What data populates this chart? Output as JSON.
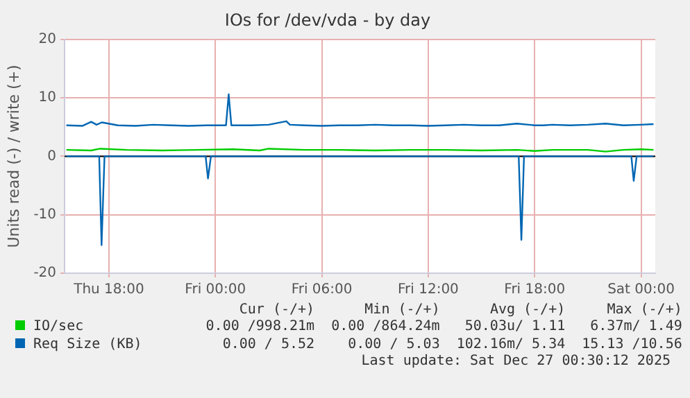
{
  "chart_data": {
    "type": "line",
    "title": "IOs for /dev/vda - by day",
    "ylabel": "Units read (-) / write (+)",
    "xlim": [
      "2025-12-25T15:30",
      "2025-12-27T00:48"
    ],
    "xticks": [
      {
        "value": "2025-12-25T18:00",
        "label": "Thu 18:00"
      },
      {
        "value": "2025-12-26T00:00",
        "label": "Fri 00:00"
      },
      {
        "value": "2025-12-26T06:00",
        "label": "Fri 06:00"
      },
      {
        "value": "2025-12-26T12:00",
        "label": "Fri 12:00"
      },
      {
        "value": "2025-12-26T18:00",
        "label": "Fri 18:00"
      },
      {
        "value": "2025-12-27T00:00",
        "label": "Sat 00:00"
      }
    ],
    "ylim": [
      -20,
      20
    ],
    "yticks": [
      -20,
      -10,
      0,
      10,
      20
    ],
    "grid": true,
    "legend": "bottom",
    "marker": "none",
    "line_style": "solid",
    "ref_lines": [
      {
        "axis": "y",
        "value": 0,
        "color": "#000000"
      }
    ],
    "series": [
      {
        "name": "IO/sec",
        "color": "#00cc00",
        "x": [
          "2025-12-25T15:36",
          "2025-12-25T17:00",
          "2025-12-25T17:30",
          "2025-12-25T19:00",
          "2025-12-25T21:00",
          "2025-12-25T23:00",
          "2025-12-26T01:00",
          "2025-12-26T02:30",
          "2025-12-26T03:00",
          "2025-12-26T05:00",
          "2025-12-26T07:00",
          "2025-12-26T09:00",
          "2025-12-26T11:00",
          "2025-12-26T13:00",
          "2025-12-26T15:00",
          "2025-12-26T17:00",
          "2025-12-26T18:00",
          "2025-12-26T19:00",
          "2025-12-26T21:00",
          "2025-12-26T22:00",
          "2025-12-26T23:00",
          "2025-12-27T00:00",
          "2025-12-27T00:42"
        ],
        "values": [
          1.1,
          1.0,
          1.3,
          1.1,
          1.0,
          1.1,
          1.2,
          1.0,
          1.3,
          1.1,
          1.1,
          1.0,
          1.1,
          1.1,
          1.0,
          1.1,
          0.9,
          1.1,
          1.1,
          0.8,
          1.1,
          1.2,
          1.1
        ]
      },
      {
        "name": "Req Size (KB)",
        "color": "#0066b3",
        "x": [
          "2025-12-25T15:36",
          "2025-12-25T16:30",
          "2025-12-25T17:00",
          "2025-12-25T17:18",
          "2025-12-25T17:36",
          "2025-12-25T18:30",
          "2025-12-25T19:30",
          "2025-12-25T20:30",
          "2025-12-25T21:30",
          "2025-12-25T22:30",
          "2025-12-25T23:30",
          "2025-12-26T00:36",
          "2025-12-26T00:45",
          "2025-12-26T00:54",
          "2025-12-26T02:00",
          "2025-12-26T03:00",
          "2025-12-26T04:00",
          "2025-12-26T04:12",
          "2025-12-26T05:00",
          "2025-12-26T06:00",
          "2025-12-26T07:00",
          "2025-12-26T08:00",
          "2025-12-26T09:00",
          "2025-12-26T10:00",
          "2025-12-26T11:00",
          "2025-12-26T12:00",
          "2025-12-26T13:00",
          "2025-12-26T14:00",
          "2025-12-26T15:00",
          "2025-12-26T16:00",
          "2025-12-26T17:00",
          "2025-12-26T18:00",
          "2025-12-26T18:30",
          "2025-12-26T19:00",
          "2025-12-26T20:00",
          "2025-12-26T21:00",
          "2025-12-26T22:00",
          "2025-12-26T23:00",
          "2025-12-27T00:00",
          "2025-12-27T00:42"
        ],
        "values": [
          5.3,
          5.2,
          5.9,
          5.4,
          5.8,
          5.3,
          5.2,
          5.4,
          5.3,
          5.2,
          5.3,
          5.3,
          10.6,
          5.3,
          5.3,
          5.4,
          6.0,
          5.4,
          5.3,
          5.2,
          5.3,
          5.3,
          5.4,
          5.3,
          5.3,
          5.2,
          5.3,
          5.4,
          5.3,
          5.3,
          5.6,
          5.3,
          5.3,
          5.4,
          5.3,
          5.4,
          5.6,
          5.3,
          5.4,
          5.5
        ]
      },
      {
        "color": "#0066b3",
        "x": [
          "2025-12-25T15:36",
          "2025-12-25T17:27",
          "2025-12-25T17:35",
          "2025-12-25T17:45",
          "2025-12-25T23:27",
          "2025-12-25T23:35",
          "2025-12-25T23:45",
          "2025-12-26T17:06",
          "2025-12-26T17:15",
          "2025-12-26T17:24",
          "2025-12-26T23:27",
          "2025-12-26T23:35",
          "2025-12-26T23:45",
          "2025-12-27T00:42"
        ],
        "values": [
          0,
          0,
          -15.2,
          0,
          0,
          -3.8,
          0,
          0,
          -14.3,
          0,
          0,
          -4.2,
          0,
          0
        ]
      }
    ],
    "annotations": [
      "Cur (-/+)",
      "Min (-/+)",
      "Avg (-/+)",
      "Max (-/+)",
      "0.00 /998.21m",
      "0.00 /864.24m",
      "50.03u/ 1.11",
      "6.37m/ 1.49",
      "0.00 / 5.52",
      "0.00 / 5.03",
      "102.16m/ 5.34",
      "15.13 /10.56",
      "Last update: Sat Dec 27 00:30:12 2025"
    ]
  }
}
